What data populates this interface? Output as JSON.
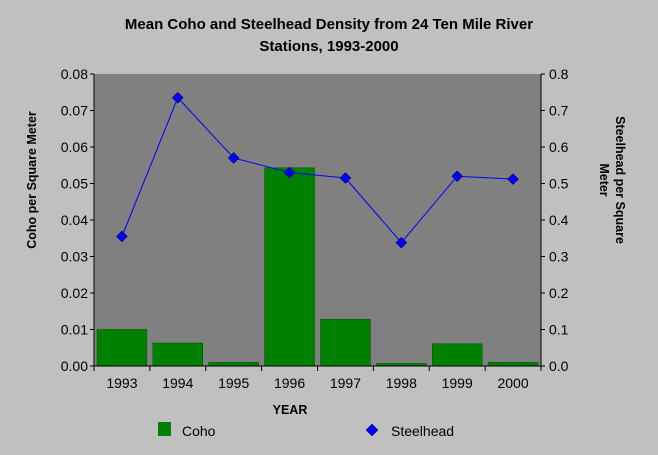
{
  "chart_data": {
    "type": "bar+line",
    "title_line1": "Mean Coho and Steelhead Density from 24 Ten Mile River",
    "title_line2": "Stations, 1993-2000",
    "xlabel": "YEAR",
    "ylabel_left": "Coho per Square Meter",
    "ylabel_right_line1": "Steelhead per Square",
    "ylabel_right_line2": "Meter",
    "categories": [
      "1993",
      "1994",
      "1995",
      "1996",
      "1997",
      "1998",
      "1999",
      "2000"
    ],
    "ylim_left": [
      0,
      0.08
    ],
    "ylim_right": [
      0,
      0.8
    ],
    "yticks_left": [
      "0.00",
      "0.01",
      "0.02",
      "0.03",
      "0.04",
      "0.05",
      "0.06",
      "0.07",
      "0.08"
    ],
    "yticks_right": [
      "0.0",
      "0.1",
      "0.2",
      "0.3",
      "0.4",
      "0.5",
      "0.6",
      "0.7",
      "0.8"
    ],
    "series": [
      {
        "name": "Coho",
        "kind": "bar",
        "axis": "left",
        "color": "#008000",
        "values": [
          0.01,
          0.0063,
          0.001,
          0.0543,
          0.0128,
          0.0007,
          0.0061,
          0.001
        ]
      },
      {
        "name": "Steelhead",
        "kind": "line",
        "axis": "right",
        "color": "#0000ff",
        "marker": "diamond",
        "values": [
          0.355,
          0.735,
          0.57,
          0.53,
          0.515,
          0.338,
          0.52,
          0.512
        ]
      }
    ],
    "legend_position": "bottom",
    "grid": false,
    "plot_background": "#808080"
  }
}
